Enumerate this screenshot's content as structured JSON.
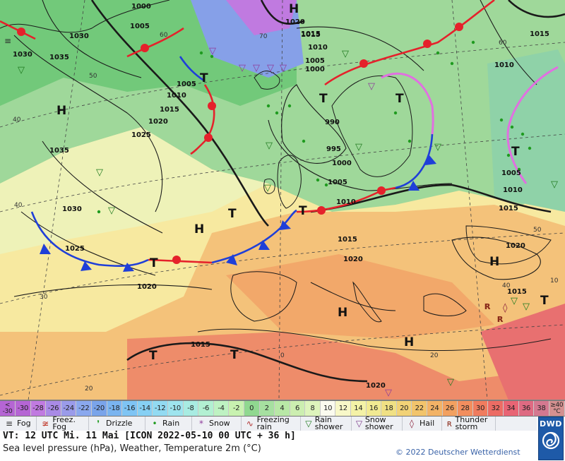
{
  "map": {
    "pressure_labels": [
      {
        "text": "1000"
      },
      {
        "text": "1005"
      },
      {
        "text": "1030"
      },
      {
        "text": "1035"
      },
      {
        "text": "1030"
      },
      {
        "text": "1005"
      },
      {
        "text": "1010"
      },
      {
        "text": "1015"
      },
      {
        "text": "1020"
      },
      {
        "text": "1025"
      },
      {
        "text": "1035"
      },
      {
        "text": "1020"
      },
      {
        "text": "1015"
      },
      {
        "text": "1010"
      },
      {
        "text": "1005"
      },
      {
        "text": "1000"
      },
      {
        "text": "990"
      },
      {
        "text": "995"
      },
      {
        "text": "1000"
      },
      {
        "text": "1005"
      },
      {
        "text": "1010"
      },
      {
        "text": "1015"
      },
      {
        "text": "1015"
      },
      {
        "text": "1010"
      },
      {
        "text": "1005"
      },
      {
        "text": "1010"
      },
      {
        "text": "1015"
      },
      {
        "text": "1030"
      },
      {
        "text": "1025"
      },
      {
        "text": "1020"
      },
      {
        "text": "1015"
      },
      {
        "text": "1020"
      },
      {
        "text": "1020"
      },
      {
        "text": "1015"
      },
      {
        "text": "1020"
      },
      {
        "text": "1015"
      }
    ],
    "center_labels": [
      {
        "text": "H"
      },
      {
        "text": "H"
      },
      {
        "text": "H"
      },
      {
        "text": "H"
      },
      {
        "text": "H"
      },
      {
        "text": "H"
      },
      {
        "text": "T"
      },
      {
        "text": "T"
      },
      {
        "text": "T"
      },
      {
        "text": "T"
      },
      {
        "text": "T"
      },
      {
        "text": "T"
      },
      {
        "text": "T"
      },
      {
        "text": "T"
      },
      {
        "text": "T"
      },
      {
        "text": "T"
      }
    ],
    "graticule_labels": [
      {
        "text": "60"
      },
      {
        "text": "50"
      },
      {
        "text": "40"
      },
      {
        "text": "30"
      },
      {
        "text": "20"
      },
      {
        "text": "0"
      },
      {
        "text": "40"
      },
      {
        "text": "20"
      },
      {
        "text": "70"
      },
      {
        "text": "60"
      },
      {
        "text": "50"
      },
      {
        "text": "40"
      },
      {
        "text": "10"
      }
    ]
  },
  "scale": {
    "low_label_top": "<",
    "low_label_bottom": "-30",
    "values": [
      "-30",
      "-28",
      "-26",
      "-24",
      "-22",
      "-20",
      "-18",
      "-16",
      "-14",
      "-12",
      "-10",
      "-8",
      "-6",
      "-4",
      "-2",
      "0",
      "2",
      "4",
      "6",
      "8",
      "10",
      "12",
      "14",
      "16",
      "18",
      "20",
      "22",
      "24",
      "26",
      "28",
      "30",
      "32",
      "34",
      "36",
      "38"
    ],
    "colors": [
      "#b565d4",
      "#c07ae0",
      "#a98ae6",
      "#9a9bea",
      "#8aa8ee",
      "#7aa4ea",
      "#7ab4f0",
      "#7ec4f4",
      "#86d0f4",
      "#92daf2",
      "#9ee4ee",
      "#a8ece2",
      "#b2f0d2",
      "#bef2c2",
      "#c8f2b0",
      "#90d890",
      "#a6e0a0",
      "#b8e8a6",
      "#cceeb0",
      "#def4bc",
      "#fbfbef",
      "#f8f8c8",
      "#f4f2a6",
      "#f2ea92",
      "#f0e084",
      "#f2d276",
      "#f2c46c",
      "#f2b266",
      "#f2a060",
      "#f28e5e",
      "#f07c5e",
      "#ec6c64",
      "#e86474",
      "#de6a82",
      "#d47890"
    ],
    "high_label_top": "≥40",
    "high_label_bottom": "°C",
    "high_color": "#d49090"
  },
  "legend": [
    {
      "icon": "fog-icon",
      "glyph": "≡",
      "label": "Fog",
      "color": "#333333"
    },
    {
      "icon": "freezing-fog-icon",
      "glyph": "≆",
      "label": "Freez. Fog",
      "color": "#c0392b"
    },
    {
      "icon": "drizzle-icon",
      "glyph": "❜",
      "label": "Drizzle",
      "color": "#1f9b1f"
    },
    {
      "icon": "rain-icon",
      "glyph": "•",
      "label": "Rain",
      "color": "#1f9b1f"
    },
    {
      "icon": "snow-icon",
      "glyph": "*",
      "label": "Snow",
      "color": "#8e3b9a"
    },
    {
      "icon": "freezing-rain-icon",
      "glyph": "∿",
      "label": "Freezing rain",
      "color": "#b03030"
    },
    {
      "icon": "rain-shower-icon",
      "glyph": "▽",
      "label": "Rain shower",
      "color": "#1f7a1f"
    },
    {
      "icon": "snow-shower-icon",
      "glyph": "▽",
      "label": "Snow shower",
      "color": "#7b3a8a"
    },
    {
      "icon": "hail-icon",
      "glyph": "◊",
      "label": "Hail",
      "color": "#8a1f3a"
    },
    {
      "icon": "thunderstorm-icon",
      "glyph": "ʀ",
      "label": "Thunder storm",
      "color": "#8a2a1a"
    }
  ],
  "footer": {
    "valid_time": "VT: 12 UTC Mi.  11 Mai [ICON 2022-05-10  00 UTC + 36 h]",
    "subtitle": "Sea level pressure (hPa), Weather, Temperature 2m (°C)",
    "copyright": "© 2022 Deutscher Wetterdienst",
    "logo_text": "DWD"
  }
}
